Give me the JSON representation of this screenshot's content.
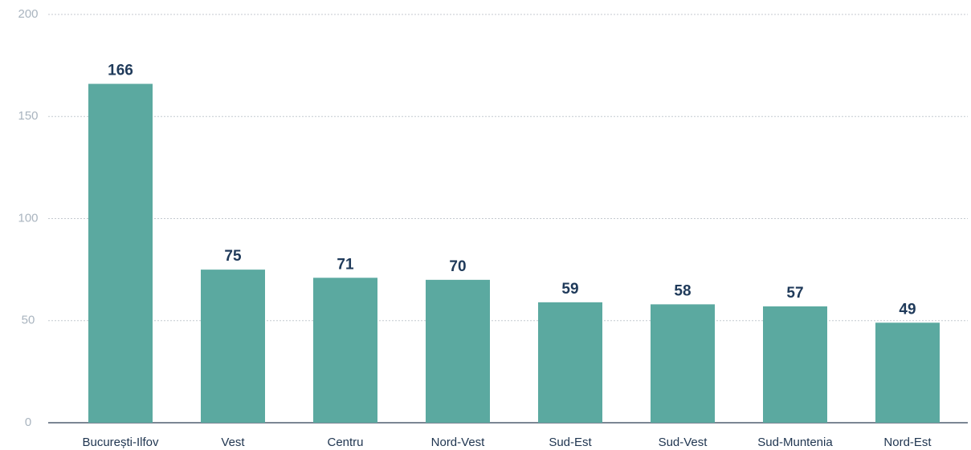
{
  "chart_data": {
    "type": "bar",
    "categories": [
      "București-Ilfov",
      "Vest",
      "Centru",
      "Nord-Vest",
      "Sud-Est",
      "Sud-Vest",
      "Sud-Muntenia",
      "Nord-Est"
    ],
    "values": [
      166,
      75,
      71,
      70,
      59,
      58,
      57,
      49
    ],
    "color": "#5ba9a0",
    "ylim": [
      0,
      200
    ],
    "yticks": [
      0,
      50,
      100,
      150,
      200
    ],
    "grid": true
  }
}
